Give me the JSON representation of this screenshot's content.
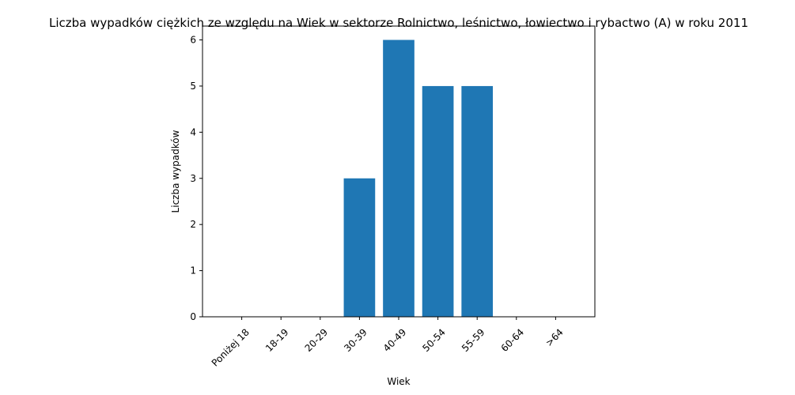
{
  "chart_data": {
    "type": "bar",
    "title": "Liczba wypadków ciężkich ze względu na Wiek w sektorze Rolnictwo, leśnictwo, łowiectwo i rybactwo (A) w roku 2011",
    "xlabel": "Wiek",
    "ylabel": "Liczba wypadków",
    "categories": [
      "Poniżej 18",
      "18-19",
      "20-29",
      "30-39",
      "40-49",
      "50-54",
      "55-59",
      "60-64",
      ">64"
    ],
    "values": [
      0,
      0,
      0,
      3,
      6,
      5,
      5,
      0,
      0
    ],
    "ylim": [
      0,
      6.3
    ],
    "yticks": [
      0,
      1,
      2,
      3,
      4,
      5,
      6
    ],
    "grid": false,
    "bar_color": "#1f77b4"
  }
}
